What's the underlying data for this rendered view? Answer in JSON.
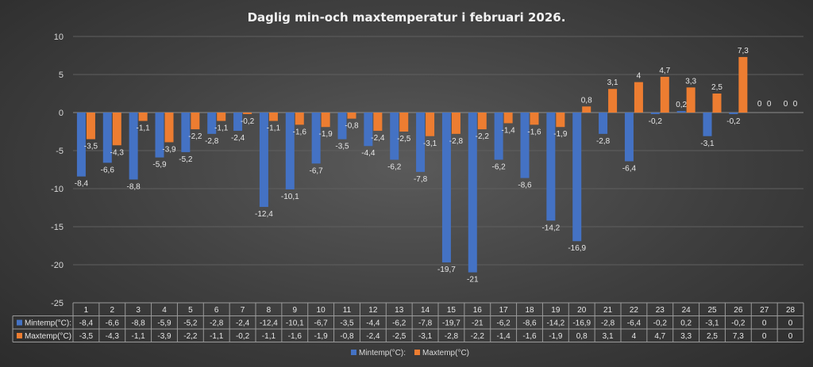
{
  "chart_data": {
    "type": "bar",
    "title": "Daglig min-och maxtemperatur i februari 2026.",
    "ylim": [
      -25,
      10
    ],
    "yticks": [
      10,
      5,
      0,
      -5,
      -10,
      -15,
      -20,
      -25
    ],
    "categories": [
      "1",
      "2",
      "3",
      "4",
      "5",
      "6",
      "7",
      "8",
      "9",
      "10",
      "11",
      "12",
      "13",
      "14",
      "15",
      "16",
      "17",
      "18",
      "19",
      "20",
      "21",
      "22",
      "23",
      "24",
      "25",
      "26",
      "27",
      "28"
    ],
    "series": [
      {
        "name": "Mintemp(°C):",
        "color": "#4472c4",
        "values": [
          -8.4,
          -6.6,
          -8.8,
          -5.9,
          -5.2,
          -2.8,
          -2.4,
          -12.4,
          -10.1,
          -6.7,
          -3.5,
          -4.4,
          -6.2,
          -7.8,
          -19.7,
          -21,
          -6.2,
          -8.6,
          -14.2,
          -16.9,
          -2.8,
          -6.4,
          -0.2,
          0.2,
          -3.1,
          -0.2,
          0,
          0
        ],
        "labels": [
          "-8,4",
          "-6,6",
          "-8,8",
          "-5,9",
          "-5,2",
          "-2,8",
          "-2,4",
          "-12,4",
          "-10,1",
          "-6,7",
          "-3,5",
          "-4,4",
          "-6,2",
          "-7,8",
          "-19,7",
          "-21",
          "-6,2",
          "-8,6",
          "-14,2",
          "-16,9",
          "-2,8",
          "-6,4",
          "-0,2",
          "0,2",
          "-3,1",
          "-0,2",
          "0",
          "0"
        ]
      },
      {
        "name": "Maxtemp(°C)",
        "color": "#ed7d31",
        "values": [
          -3.5,
          -4.3,
          -1.1,
          -3.9,
          -2.2,
          -1.1,
          -0.2,
          -1.1,
          -1.6,
          -1.9,
          -0.8,
          -2.4,
          -2.5,
          -3.1,
          -2.8,
          -2.2,
          -1.4,
          -1.6,
          -1.9,
          0.8,
          3.1,
          4,
          4.7,
          3.3,
          2.5,
          7.3,
          0,
          0
        ],
        "labels": [
          "-3,5",
          "-4,3",
          "-1,1",
          "-3,9",
          "-2,2",
          "-1,1",
          "-0,2",
          "-1,1",
          "-1,6",
          "-1,9",
          "-0,8",
          "-2,4",
          "-2,5",
          "-3,1",
          "-2,8",
          "-2,2",
          "-1,4",
          "-1,6",
          "-1,9",
          "0,8",
          "3,1",
          "4",
          "4,7",
          "3,3",
          "2,5",
          "7,3",
          "0",
          "0"
        ]
      }
    ],
    "grid": true,
    "legend": "bottom",
    "data_table": true
  }
}
